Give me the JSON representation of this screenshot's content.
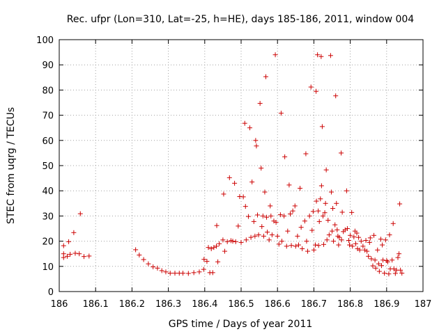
{
  "chart_data": {
    "type": "scatter",
    "title": "Rec. ufpr (Lon=310, Lat=-25, h=HE), days 185-186, 2011, window 004",
    "xlabel": "GPS time / Days of year 2011",
    "ylabel": "STEC from uqrg / TECUs",
    "xlim": [
      186,
      187
    ],
    "ylim": [
      0,
      100
    ],
    "xticks": [
      "186",
      "186.1",
      "186.2",
      "186.3",
      "186.4",
      "186.5",
      "186.6",
      "186.7",
      "186.8",
      "186.9",
      "187"
    ],
    "yticks": [
      "0",
      "10",
      "20",
      "30",
      "40",
      "50",
      "60",
      "70",
      "80",
      "90",
      "100"
    ],
    "grid": true,
    "marker": "+",
    "color": "#cc0000",
    "series": [
      {
        "name": "STEC",
        "points": [
          [
            186.012,
            18.2
          ],
          [
            186.012,
            15.0
          ],
          [
            186.012,
            13.5
          ],
          [
            186.022,
            14.0
          ],
          [
            186.026,
            19.8
          ],
          [
            186.03,
            14.8
          ],
          [
            186.04,
            23.4
          ],
          [
            186.044,
            15.2
          ],
          [
            186.055,
            15.0
          ],
          [
            186.058,
            30.9
          ],
          [
            186.068,
            13.9
          ],
          [
            186.082,
            14.1
          ],
          [
            186.21,
            16.6
          ],
          [
            186.22,
            14.5
          ],
          [
            186.232,
            12.7
          ],
          [
            186.245,
            11.0
          ],
          [
            186.258,
            9.8
          ],
          [
            186.27,
            9.3
          ],
          [
            186.282,
            8.3
          ],
          [
            186.293,
            7.8
          ],
          [
            186.305,
            7.3
          ],
          [
            186.318,
            7.3
          ],
          [
            186.33,
            7.3
          ],
          [
            186.34,
            7.3
          ],
          [
            186.355,
            7.2
          ],
          [
            186.37,
            7.5
          ],
          [
            186.385,
            7.8
          ],
          [
            186.397,
            8.8
          ],
          [
            186.398,
            12.8
          ],
          [
            186.406,
            12.0
          ],
          [
            186.41,
            17.5
          ],
          [
            186.414,
            7.5
          ],
          [
            186.418,
            17.0
          ],
          [
            186.422,
            7.5
          ],
          [
            186.425,
            17.5
          ],
          [
            186.432,
            18.0
          ],
          [
            186.433,
            26.2
          ],
          [
            186.436,
            11.8
          ],
          [
            186.44,
            19.0
          ],
          [
            186.45,
            20.5
          ],
          [
            186.452,
            38.7
          ],
          [
            186.455,
            16.0
          ],
          [
            186.462,
            19.8
          ],
          [
            186.468,
            45.2
          ],
          [
            186.472,
            20.2
          ],
          [
            186.477,
            20.0
          ],
          [
            186.482,
            43.0
          ],
          [
            186.485,
            19.8
          ],
          [
            186.492,
            26.0
          ],
          [
            186.496,
            37.7
          ],
          [
            186.5,
            19.5
          ],
          [
            186.506,
            37.6
          ],
          [
            186.51,
            66.8
          ],
          [
            186.512,
            33.8
          ],
          [
            186.514,
            20.5
          ],
          [
            186.52,
            29.8
          ],
          [
            186.524,
            65.0
          ],
          [
            186.527,
            21.5
          ],
          [
            186.53,
            43.5
          ],
          [
            186.535,
            27.8
          ],
          [
            186.538,
            22.0
          ],
          [
            186.54,
            60.0
          ],
          [
            186.542,
            57.8
          ],
          [
            186.545,
            30.4
          ],
          [
            186.548,
            22.5
          ],
          [
            186.552,
            74.7
          ],
          [
            186.555,
            49.0
          ],
          [
            186.557,
            25.8
          ],
          [
            186.56,
            30.0
          ],
          [
            186.562,
            22.0
          ],
          [
            186.565,
            39.5
          ],
          [
            186.568,
            85.3
          ],
          [
            186.57,
            29.5
          ],
          [
            186.572,
            23.6
          ],
          [
            186.577,
            20.5
          ],
          [
            186.58,
            34.0
          ],
          [
            186.582,
            30.0
          ],
          [
            186.585,
            22.5
          ],
          [
            186.59,
            28.0
          ],
          [
            186.594,
            94.0
          ],
          [
            186.596,
            27.5
          ],
          [
            186.6,
            22.0
          ],
          [
            186.604,
            18.8
          ],
          [
            186.608,
            30.5
          ],
          [
            186.61,
            70.8
          ],
          [
            186.612,
            20.0
          ],
          [
            186.618,
            30.0
          ],
          [
            186.62,
            53.5
          ],
          [
            186.625,
            18.0
          ],
          [
            186.628,
            24.0
          ],
          [
            186.632,
            42.3
          ],
          [
            186.635,
            30.8
          ],
          [
            186.638,
            18.3
          ],
          [
            186.642,
            32.0
          ],
          [
            186.648,
            34.0
          ],
          [
            186.65,
            18.0
          ],
          [
            186.655,
            22.0
          ],
          [
            186.658,
            18.5
          ],
          [
            186.662,
            41.0
          ],
          [
            186.665,
            25.5
          ],
          [
            186.668,
            17.0
          ],
          [
            186.675,
            28.0
          ],
          [
            186.678,
            54.7
          ],
          [
            186.68,
            20.0
          ],
          [
            186.683,
            16.0
          ],
          [
            186.688,
            30.0
          ],
          [
            186.692,
            81.2
          ],
          [
            186.695,
            24.3
          ],
          [
            186.698,
            31.8
          ],
          [
            186.7,
            16.5
          ],
          [
            186.704,
            18.5
          ],
          [
            186.706,
            79.5
          ],
          [
            186.707,
            35.9
          ],
          [
            186.71,
            94.0
          ],
          [
            186.712,
            32.0
          ],
          [
            186.713,
            18.3
          ],
          [
            186.715,
            27.8
          ],
          [
            186.718,
            36.8
          ],
          [
            186.72,
            93.3
          ],
          [
            186.721,
            42.0
          ],
          [
            186.723,
            65.5
          ],
          [
            186.725,
            30.0
          ],
          [
            186.727,
            18.7
          ],
          [
            186.73,
            31.3
          ],
          [
            186.732,
            35.0
          ],
          [
            186.734,
            48.3
          ],
          [
            186.736,
            20.5
          ],
          [
            186.739,
            28.3
          ],
          [
            186.742,
            22.5
          ],
          [
            186.746,
            93.7
          ],
          [
            186.748,
            39.5
          ],
          [
            186.75,
            24.0
          ],
          [
            186.752,
            33.0
          ],
          [
            186.754,
            20.0
          ],
          [
            186.758,
            26.5
          ],
          [
            186.76,
            77.7
          ],
          [
            186.762,
            35.0
          ],
          [
            186.764,
            24.5
          ],
          [
            186.766,
            22.0
          ],
          [
            186.768,
            18.5
          ],
          [
            186.77,
            21.5
          ],
          [
            186.775,
            55.0
          ],
          [
            186.776,
            20.5
          ],
          [
            186.778,
            31.5
          ],
          [
            186.781,
            23.8
          ],
          [
            186.786,
            24.5
          ],
          [
            186.79,
            40.0
          ],
          [
            186.792,
            25.0
          ],
          [
            186.796,
            20.3
          ],
          [
            186.798,
            18.5
          ],
          [
            186.8,
            22.3
          ],
          [
            186.804,
            31.4
          ],
          [
            186.806,
            18.0
          ],
          [
            186.81,
            21.7
          ],
          [
            186.813,
            24.0
          ],
          [
            186.815,
            19.0
          ],
          [
            186.818,
            23.2
          ],
          [
            186.82,
            17.0
          ],
          [
            186.823,
            21.5
          ],
          [
            186.826,
            16.5
          ],
          [
            186.83,
            20.0
          ],
          [
            186.835,
            18.0
          ],
          [
            186.84,
            16.5
          ],
          [
            186.843,
            20.3
          ],
          [
            186.846,
            16.0
          ],
          [
            186.85,
            14.0
          ],
          [
            186.853,
            19.5
          ],
          [
            186.855,
            21.3
          ],
          [
            186.858,
            13.0
          ],
          [
            186.862,
            10.2
          ],
          [
            186.865,
            22.3
          ],
          [
            186.868,
            12.5
          ],
          [
            186.87,
            9.3
          ],
          [
            186.875,
            16.5
          ],
          [
            186.878,
            11.0
          ],
          [
            186.88,
            8.0
          ],
          [
            186.884,
            20.8
          ],
          [
            186.886,
            10.3
          ],
          [
            186.888,
            18.5
          ],
          [
            186.89,
            12.5
          ],
          [
            186.894,
            7.3
          ],
          [
            186.897,
            20.5
          ],
          [
            186.9,
            12.3
          ],
          [
            186.903,
            11.8
          ],
          [
            186.906,
            7.0
          ],
          [
            186.908,
            22.5
          ],
          [
            186.91,
            9.0
          ],
          [
            186.915,
            12.5
          ],
          [
            186.918,
            27.0
          ],
          [
            186.92,
            9.0
          ],
          [
            186.924,
            7.2
          ],
          [
            186.927,
            8.5
          ],
          [
            186.931,
            13.5
          ],
          [
            186.934,
            15.0
          ],
          [
            186.936,
            34.8
          ],
          [
            186.938,
            8.5
          ],
          [
            186.942,
            7.3
          ]
        ]
      }
    ]
  }
}
